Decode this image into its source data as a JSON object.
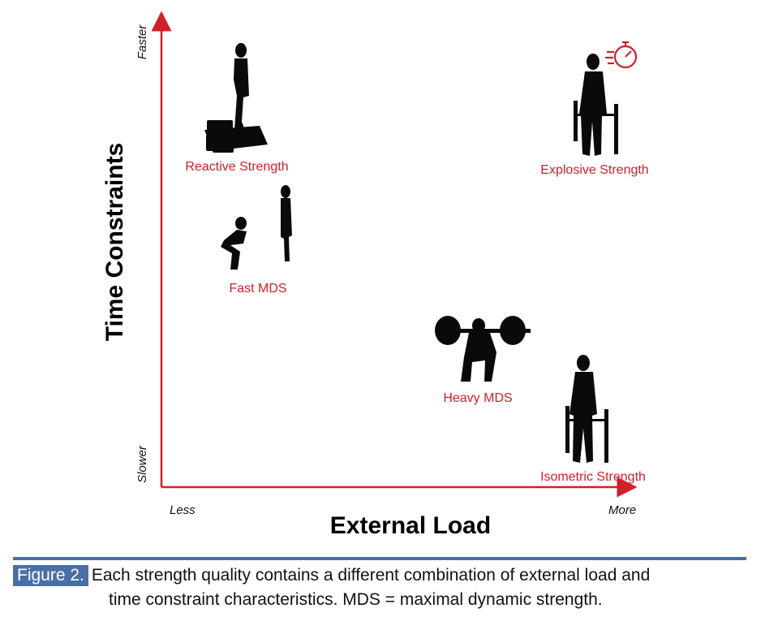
{
  "axes": {
    "y_title": "Time Constraints",
    "y_top": "Faster",
    "y_bottom": "Slower",
    "x_title": "External Load",
    "x_left": "Less",
    "x_right": "More",
    "axis_color": "#d0202a"
  },
  "qualities": {
    "reactive": "Reactive Strength",
    "explosive": "Explosive Strength",
    "fast_mds": "Fast MDS",
    "heavy_mds": "Heavy MDS",
    "isometric": "Isometric Strength"
  },
  "caption": {
    "figure_label": "Figure 2.",
    "text_line1": "Each strength quality contains a different combination of external load and",
    "text_line2": "time constraint characteristics. MDS = maximal dynamic strength."
  },
  "icons": [
    "stopwatch-icon"
  ],
  "colors": {
    "label_red": "#d0202a",
    "caption_blue": "#4a6fa5"
  }
}
